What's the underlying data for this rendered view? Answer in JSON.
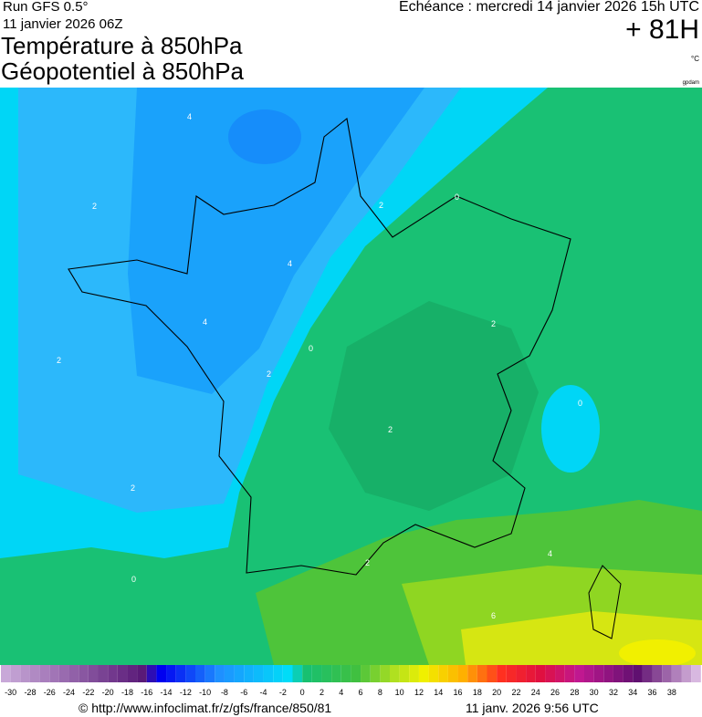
{
  "header": {
    "run": "Run GFS 0.5°",
    "date": "11 janvier 2026 06Z",
    "title": "Température à 850hPa",
    "subtitle": "Géopotentiel à 850hPa",
    "valid": "Echéance : mercredi 14 janvier 2026 15h UTC",
    "lead": "+ 81H",
    "unit": "°C",
    "tag": "gpdam"
  },
  "map": {
    "contour_labels": [
      "4",
      "2",
      "0",
      "2",
      "4",
      "4",
      "2",
      "0",
      "2",
      "2",
      "2",
      "0",
      "2",
      "4",
      "6",
      "2",
      "0"
    ]
  },
  "legend": {
    "labels": [
      -30,
      -28,
      -26,
      -24,
      -22,
      -20,
      -18,
      -16,
      -14,
      -12,
      -10,
      -8,
      -6,
      -4,
      -2,
      0,
      2,
      4,
      6,
      8,
      10,
      12,
      14,
      16,
      18,
      20,
      22,
      24,
      26,
      28,
      30,
      32,
      34,
      36,
      38
    ]
  },
  "footer": {
    "url": "© http://www.infoclimat.fr/z/gfs/france/850/81",
    "timestamp": "11 janv. 2026  9:56 UTC"
  }
}
